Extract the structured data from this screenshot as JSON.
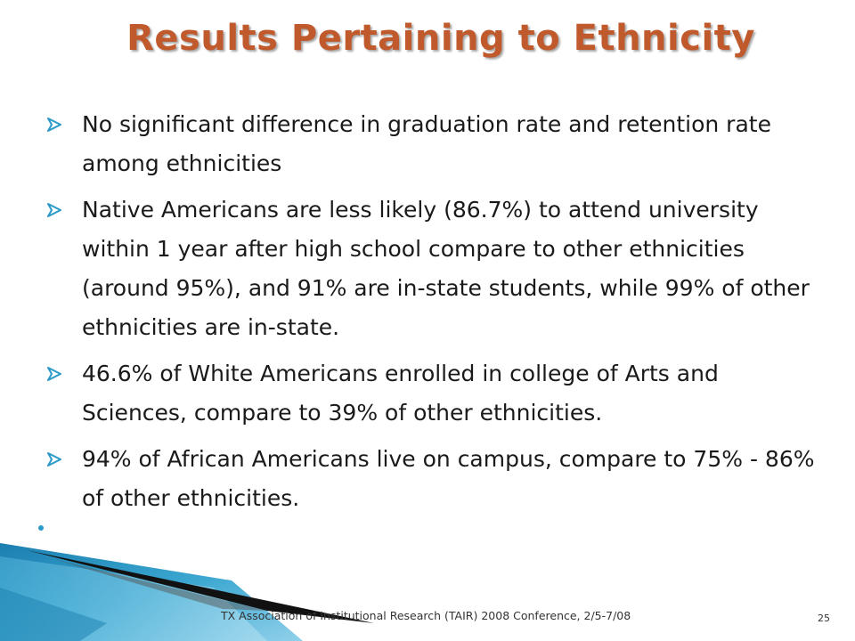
{
  "slide": {
    "title": "Results Pertaining to Ethnicity",
    "bullets": [
      "No significant difference in graduation rate and retention rate among ethnicities",
      "Native Americans are less likely (86.7%) to attend university within 1  year after high school compare to other ethnicities (around 95%), and 91% are in-state students, while 99% of other ethnicities are in-state.",
      "46.6% of White Americans enrolled in college of Arts and Sciences, compare to 39% of other ethnicities.",
      "94% of African Americans live on campus, compare to 75% - 86% of other ethnicities."
    ],
    "footer": "TX Association of Institutional Research (TAIR) 2008 Conference, 2/5-7/08",
    "page_number": "25"
  },
  "colors": {
    "title": "#c0592b",
    "bullet_arrow": "#2b9ac8",
    "corner_teal": "#3aa6d0",
    "corner_light": "#8fd0ea"
  },
  "icons": {
    "bullet": "arrow-bullet-icon",
    "empty_bullet": "dot-bullet-icon"
  }
}
